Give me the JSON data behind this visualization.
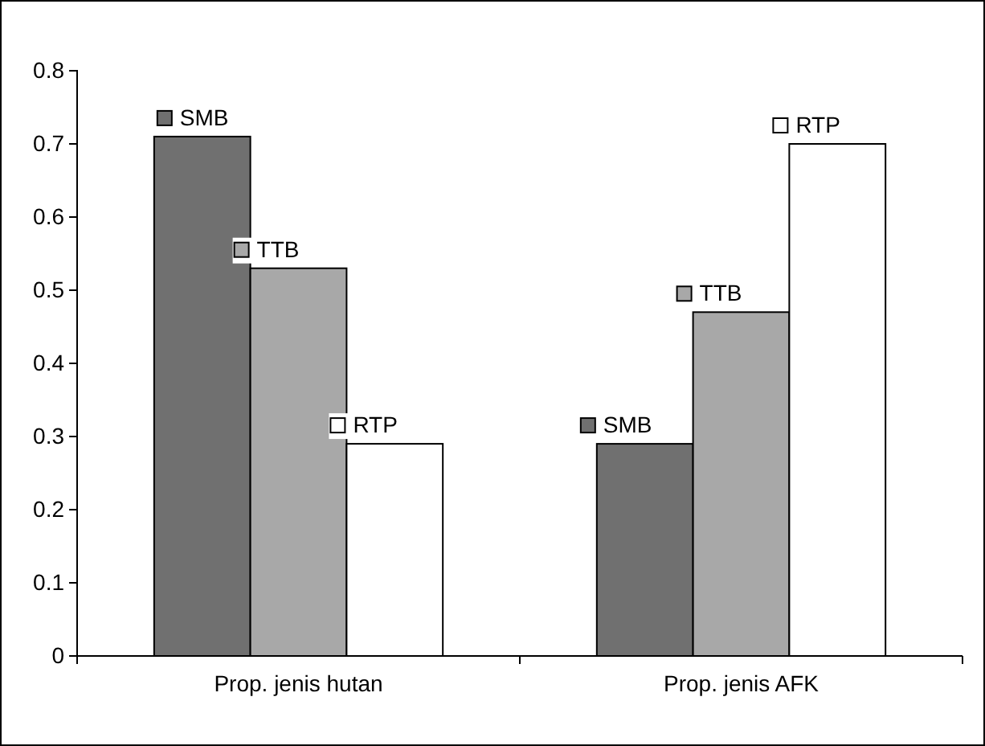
{
  "chart_data": {
    "type": "bar",
    "categories": [
      "Prop. jenis hutan",
      "Prop. jenis AFK"
    ],
    "series": [
      {
        "name": "SMB",
        "color": "#707070",
        "values": [
          0.71,
          0.29
        ]
      },
      {
        "name": "TTB",
        "color": "#a8a8a8",
        "values": [
          0.53,
          0.47
        ]
      },
      {
        "name": "RTP",
        "color": "#ffffff",
        "values": [
          0.29,
          0.7
        ]
      }
    ],
    "ylim": [
      0,
      0.8
    ],
    "yticks": [
      0,
      {
        "value": 0.1,
        "label": "0.1"
      },
      {
        "value": 0.2,
        "label": "0.2"
      },
      {
        "value": 0.3,
        "label": "0.3"
      },
      {
        "value": 0.4,
        "label": "0.4"
      },
      {
        "value": 0.5,
        "label": "0.5"
      },
      {
        "value": 0.6,
        "label": "0.6"
      },
      {
        "value": 0.7,
        "label": "0.7"
      },
      {
        "value": 0.8,
        "label": "0.8"
      }
    ],
    "grid": false,
    "legend": "top"
  }
}
